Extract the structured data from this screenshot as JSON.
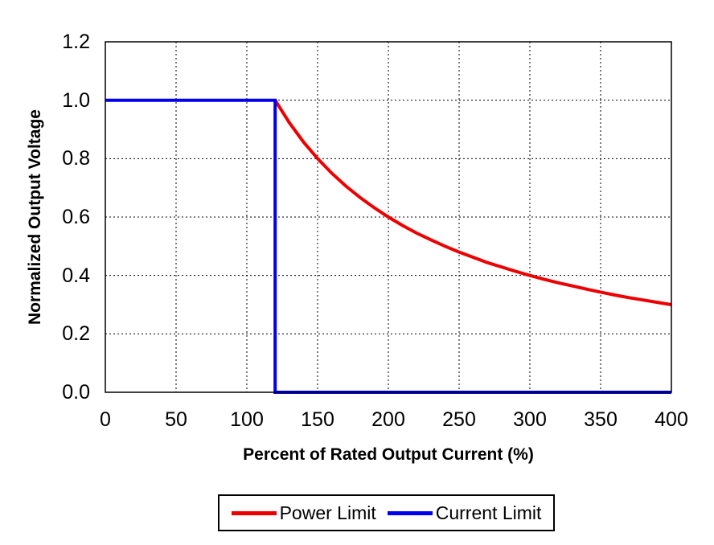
{
  "figure": {
    "background": "#ffffff",
    "text_color": "#000000",
    "frame_color": "#000000",
    "grid_color": "#000000"
  },
  "chart_data": {
    "type": "line",
    "title": "",
    "xlabel": "Percent of Rated Output Current (%)",
    "ylabel": "Normalized Output Voltage",
    "xlim": [
      0,
      400
    ],
    "ylim": [
      0,
      1.2
    ],
    "x_ticks": [
      0,
      50,
      100,
      150,
      200,
      250,
      300,
      350,
      400
    ],
    "y_ticks": [
      0,
      0.2,
      0.4,
      0.6,
      0.8,
      1.0,
      1.2
    ],
    "y_tick_labels": [
      "0.0",
      "0.2",
      "0.4",
      "0.6",
      "0.8",
      "1.0",
      "1.2"
    ],
    "grid": {
      "style": "dashed",
      "vertical": true,
      "horizontal": true
    },
    "legend_position": "bottom-center",
    "series": [
      {
        "name": "Power Limit",
        "color": "#ee0000",
        "points": [
          [
            120,
            1.0
          ],
          [
            130,
            0.923
          ],
          [
            140,
            0.857
          ],
          [
            150,
            0.8
          ],
          [
            160,
            0.75
          ],
          [
            170,
            0.706
          ],
          [
            180,
            0.667
          ],
          [
            190,
            0.632
          ],
          [
            200,
            0.6
          ],
          [
            210,
            0.571
          ],
          [
            220,
            0.545
          ],
          [
            230,
            0.522
          ],
          [
            240,
            0.5
          ],
          [
            250,
            0.48
          ],
          [
            260,
            0.462
          ],
          [
            270,
            0.444
          ],
          [
            280,
            0.429
          ],
          [
            290,
            0.414
          ],
          [
            300,
            0.4
          ],
          [
            310,
            0.387
          ],
          [
            320,
            0.375
          ],
          [
            330,
            0.364
          ],
          [
            340,
            0.353
          ],
          [
            350,
            0.343
          ],
          [
            360,
            0.333
          ],
          [
            370,
            0.324
          ],
          [
            380,
            0.316
          ],
          [
            390,
            0.308
          ],
          [
            400,
            0.3
          ]
        ]
      },
      {
        "name": "Current Limit",
        "color": "#0000ee",
        "points": [
          [
            0,
            1.0
          ],
          [
            120,
            1.0
          ],
          [
            120,
            0.0
          ],
          [
            400,
            0.0
          ]
        ]
      }
    ]
  }
}
